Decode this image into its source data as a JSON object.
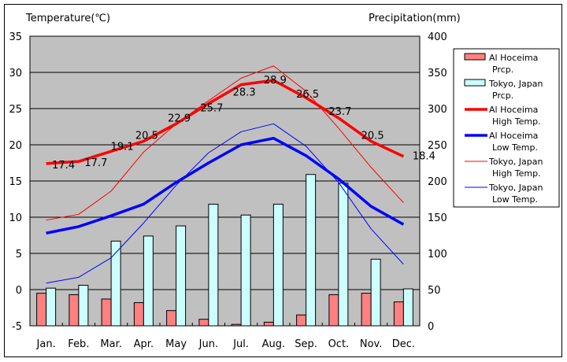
{
  "chart_data": {
    "type": "bar+line",
    "left_axis_title": "Temperature(℃)",
    "right_axis_title": "Precipitation(mm)",
    "categories": [
      "Jan.",
      "Feb.",
      "Mar.",
      "Apr.",
      "May",
      "Jun.",
      "Jul.",
      "Aug.",
      "Sep.",
      "Oct.",
      "Nov.",
      "Dec."
    ],
    "temp_ylim": [
      -5,
      35
    ],
    "temp_ticks": [
      "35",
      "30",
      "25",
      "20",
      "15",
      "10",
      "5",
      "0",
      "-5"
    ],
    "precip_ylim": [
      0,
      400
    ],
    "precip_ticks": [
      "400",
      "350",
      "300",
      "250",
      "200",
      "150",
      "100",
      "50",
      "0"
    ],
    "grid": true,
    "legend_position": "right",
    "bar_series": [
      {
        "name": "Al Hoceima Prcp.",
        "legend_lines": [
          "Al Hoceima",
          "Prcp."
        ],
        "color": "#ff8080",
        "axis": "right",
        "values": [
          45,
          43,
          37,
          32,
          21,
          9,
          2,
          5,
          15,
          43,
          45,
          33
        ]
      },
      {
        "name": "Tokyo, Japan Prcp.",
        "legend_lines": [
          "Tokyo, Japan",
          "Prcp."
        ],
        "color": "#ccffff",
        "axis": "right",
        "values": [
          52,
          56,
          117,
          124,
          138,
          168,
          153,
          168,
          209,
          197,
          92,
          51
        ]
      }
    ],
    "line_series": [
      {
        "name": "Al Hoceima High Temp.",
        "legend_lines": [
          "Al Hoceima",
          "High Temp."
        ],
        "color": "#ff0000",
        "width": "thick",
        "axis": "left",
        "values": [
          17.4,
          17.7,
          19.1,
          20.5,
          22.9,
          25.7,
          28.3,
          28.9,
          26.5,
          23.7,
          20.5,
          18.4
        ],
        "data_labels": [
          "17.4",
          "17.7",
          "19.1",
          "20.5",
          "22.9",
          "25.7",
          "28.3",
          "28.9",
          "26.5",
          "23.7",
          "20.5",
          "18.4"
        ]
      },
      {
        "name": "Al Hoceima Low Temp.",
        "legend_lines": [
          "Al Hoceima",
          "Low Temp."
        ],
        "color": "#0000ff",
        "width": "thick",
        "axis": "left",
        "values": [
          7.8,
          8.7,
          10.2,
          11.8,
          14.8,
          17.5,
          20.0,
          20.9,
          18.5,
          15.3,
          11.5,
          9.0
        ]
      },
      {
        "name": "Tokyo, Japan High Temp.",
        "legend_lines": [
          "Tokyo, Japan",
          "High Temp."
        ],
        "color": "#ff0000",
        "width": "thin",
        "axis": "left",
        "values": [
          9.6,
          10.4,
          13.6,
          19.0,
          22.9,
          26.1,
          29.2,
          30.9,
          27.4,
          22.3,
          16.9,
          12.0
        ]
      },
      {
        "name": "Tokyo, Japan Low Temp.",
        "legend_lines": [
          "Tokyo, Japan",
          "Low Temp."
        ],
        "color": "#0000ff",
        "width": "thin",
        "axis": "left",
        "values": [
          0.9,
          1.7,
          4.4,
          9.2,
          14.4,
          18.9,
          21.8,
          22.9,
          19.8,
          14.8,
          8.4,
          3.5
        ]
      }
    ]
  }
}
